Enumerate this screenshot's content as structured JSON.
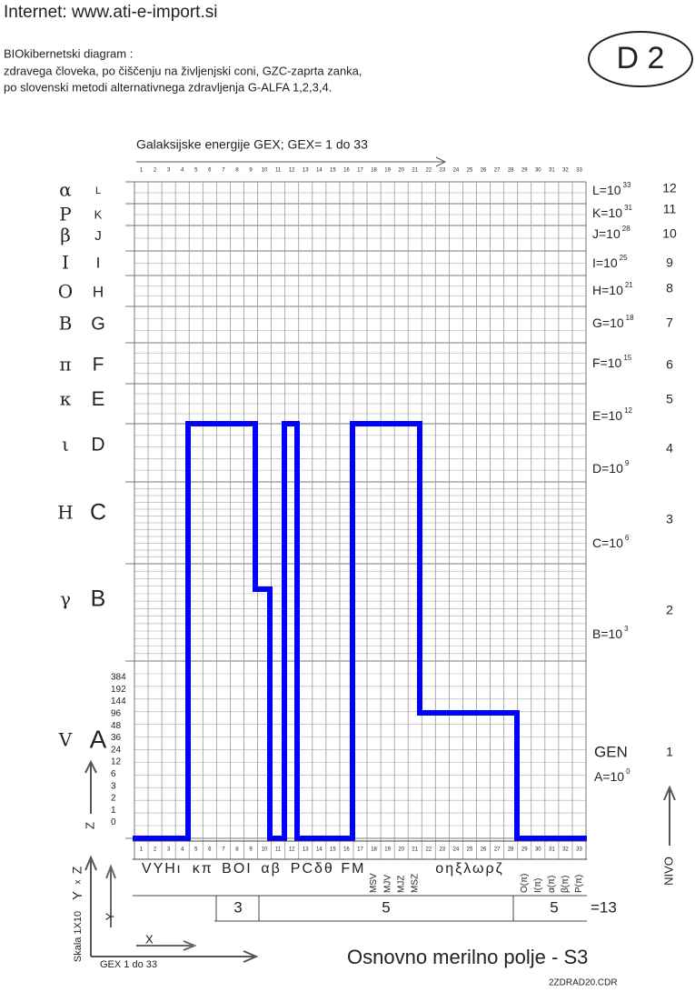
{
  "header": {
    "internet": "Internet: www.ati-e-import.si",
    "description": [
      "BIOkibernetski diagram :",
      "zdravega človeka, po čiščenju na življenjski coni, GZC-zaprta zanka,",
      "po slovenski metodi alternativnega zdravljenja G-ALFA 1,2,3,4."
    ],
    "badge": "D 2"
  },
  "gex_title": "Galaksijske energije GEX;    GEX= 1 do 33",
  "columns": [
    "1",
    "2",
    "3",
    "4",
    "5",
    "6",
    "7",
    "8",
    "9",
    "10",
    "11",
    "12",
    "13",
    "14",
    "15",
    "16",
    "17",
    "18",
    "19",
    "20",
    "21",
    "22",
    "23",
    "24",
    "25",
    "26",
    "27",
    "28",
    "29",
    "30",
    "31",
    "32",
    "33"
  ],
  "levels": [
    {
      "greek": "α",
      "letter": "L",
      "base": "L=10",
      "exp": "33",
      "nivo": "12"
    },
    {
      "greek": "P",
      "letter": "K",
      "base": "K=10",
      "exp": "31",
      "nivo": "11"
    },
    {
      "greek": "β",
      "letter": "J",
      "base": "J=10",
      "exp": "28",
      "nivo": "10"
    },
    {
      "greek": "I",
      "letter": "I",
      "base": "I=10",
      "exp": "25",
      "nivo": "9"
    },
    {
      "greek": "O",
      "letter": "H",
      "base": "H=10",
      "exp": "21",
      "nivo": "8"
    },
    {
      "greek": "B",
      "letter": "G",
      "base": "G=10",
      "exp": "18",
      "nivo": "7"
    },
    {
      "greek": "π",
      "letter": "F",
      "base": "F=10",
      "exp": "15",
      "nivo": "6"
    },
    {
      "greek": "κ",
      "letter": "E",
      "base": "E=10",
      "exp": "12",
      "nivo": "5"
    },
    {
      "greek": "ι",
      "letter": "D",
      "base": "D=10",
      "exp": "9",
      "nivo": "4"
    },
    {
      "greek": "H",
      "letter": "C",
      "base": "C=10",
      "exp": "6",
      "nivo": "3"
    },
    {
      "greek": "γ",
      "letter": "B",
      "base": "B=10",
      "exp": "3",
      "nivo": "2"
    },
    {
      "greek": "V",
      "letter": "A",
      "base": "A=10",
      "exp": "0",
      "nivo": "1"
    }
  ],
  "gen": "GEN",
  "a_scale": [
    "384",
    "192",
    "144",
    "96",
    "48",
    "36",
    "24",
    "12",
    "6",
    "3",
    "2",
    "1",
    "0"
  ],
  "symbols": [
    "VΥΗι",
    "κπ",
    "ΒΟΙ",
    "αβ",
    "ΡCδθ",
    "FM",
    "οηξλωρζ"
  ],
  "rotated_symbols": [
    "MSV",
    "MJV",
    "MJZ",
    "MSZ",
    "O(π)",
    "I(π)",
    "α(π)",
    "β(π)",
    "P(π)"
  ],
  "groups": [
    "3",
    "5",
    "5",
    "=13"
  ],
  "axes": {
    "z": "Z",
    "y": "Y",
    "yx": "Y",
    "x_small": "x",
    "z_small": "Z",
    "scale": "Skala 1X10",
    "x": "X",
    "gex": "GEX 1 do 33",
    "nivo": "NIVO"
  },
  "footer": {
    "title": "Osnovno merilno polje - S3",
    "file": "2ZDRAD20.CDR"
  }
}
